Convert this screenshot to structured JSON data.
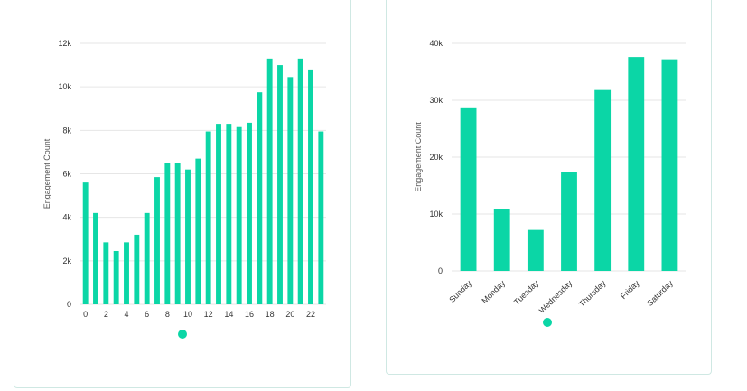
{
  "colors": {
    "bar": "#0bd6a6",
    "panel_border": "#cfe8e3",
    "grid": "#e6e6e6"
  },
  "chart_data": [
    {
      "type": "bar",
      "xlabel": "",
      "ylabel": "Engagement Count",
      "ylim": [
        0,
        12000
      ],
      "yticks": [
        {
          "value": 0,
          "label": "0"
        },
        {
          "value": 2000,
          "label": "2k"
        },
        {
          "value": 4000,
          "label": "4k"
        },
        {
          "value": 6000,
          "label": "6k"
        },
        {
          "value": 8000,
          "label": "8k"
        },
        {
          "value": 10000,
          "label": "10k"
        },
        {
          "value": 12000,
          "label": "12k"
        }
      ],
      "categories": [
        "0",
        "1",
        "2",
        "3",
        "4",
        "5",
        "6",
        "7",
        "8",
        "9",
        "10",
        "11",
        "12",
        "13",
        "14",
        "15",
        "16",
        "17",
        "18",
        "19",
        "20",
        "21",
        "22",
        "23"
      ],
      "xtick_labels": [
        "0",
        "",
        "2",
        "",
        "4",
        "",
        "6",
        "",
        "8",
        "",
        "10",
        "",
        "12",
        "",
        "14",
        "",
        "16",
        "",
        "18",
        "",
        "20",
        "",
        "22",
        ""
      ],
      "values": [
        5600,
        4200,
        2850,
        2450,
        2850,
        3200,
        4200,
        5850,
        6500,
        6500,
        6200,
        6700,
        7950,
        8300,
        8300,
        8150,
        8350,
        9750,
        11300,
        11000,
        10450,
        11300,
        10800,
        7950
      ],
      "grid": true,
      "legend": "bottom"
    },
    {
      "type": "bar",
      "xlabel": "",
      "ylabel": "Engagement Count",
      "ylim": [
        0,
        40000
      ],
      "yticks": [
        {
          "value": 0,
          "label": "0"
        },
        {
          "value": 10000,
          "label": "10k"
        },
        {
          "value": 20000,
          "label": "20k"
        },
        {
          "value": 30000,
          "label": "30k"
        },
        {
          "value": 40000,
          "label": "40k"
        }
      ],
      "categories": [
        "Sunday",
        "Monday",
        "Tuesday",
        "Wednesday",
        "Thursday",
        "Friday",
        "Saturday"
      ],
      "xtick_labels": [
        "Sunday",
        "Monday",
        "Tuesday",
        "Wednesday",
        "Thursday",
        "Friday",
        "Saturday"
      ],
      "values": [
        28600,
        10800,
        7200,
        17400,
        31800,
        37600,
        37200
      ],
      "grid": true,
      "legend": "bottom"
    }
  ]
}
